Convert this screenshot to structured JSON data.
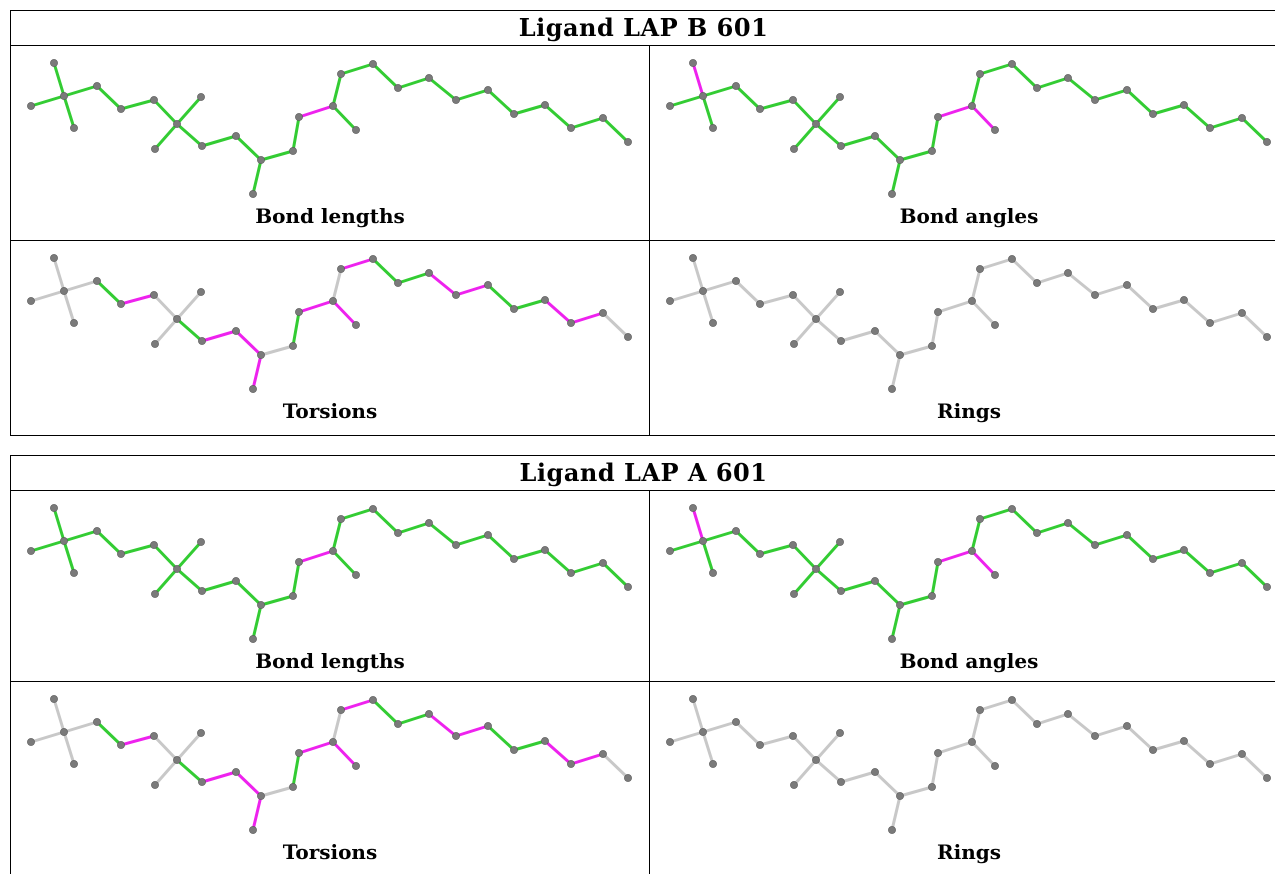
{
  "colors": {
    "ok": "#33cc33",
    "outlier": "#ee22ee",
    "neutral": "#c8c8c8",
    "atom": "#7a7a7a"
  },
  "ligands": [
    {
      "title": "Ligand LAP B 601",
      "panels": [
        {
          "caption": "Bond lengths",
          "mode": "lengths"
        },
        {
          "caption": "Bond angles",
          "mode": "angles"
        },
        {
          "caption": "Torsions",
          "mode": "torsions"
        },
        {
          "caption": "Rings",
          "mode": "rings"
        }
      ]
    },
    {
      "title": "Ligand LAP A 601",
      "panels": [
        {
          "caption": "Bond lengths",
          "mode": "lengths"
        },
        {
          "caption": "Bond angles",
          "mode": "angles"
        },
        {
          "caption": "Torsions",
          "mode": "torsions"
        },
        {
          "caption": "Rings",
          "mode": "rings"
        }
      ]
    }
  ]
}
